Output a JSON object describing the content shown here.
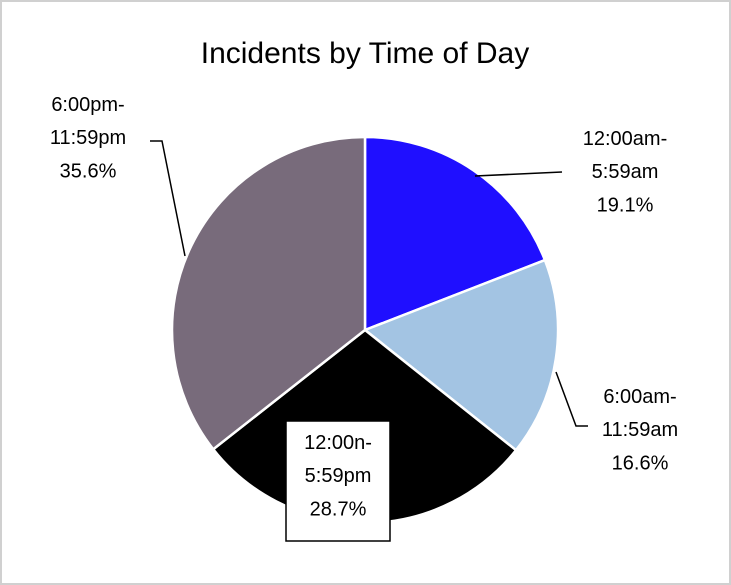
{
  "chart_data": {
    "type": "pie",
    "title": "Incidents by Time of Day",
    "categories": [
      "12:00am-5:59am",
      "6:00am-11:59am",
      "12:00n-5:59pm",
      "6:00pm-11:59pm"
    ],
    "values": [
      19.1,
      16.6,
      28.7,
      35.6
    ],
    "value_labels": [
      "19.1%",
      "16.6%",
      "28.7%",
      "35.6%"
    ],
    "colors": [
      "#1f0fff",
      "#a3c4e3",
      "#000000",
      "#786b7b"
    ]
  }
}
